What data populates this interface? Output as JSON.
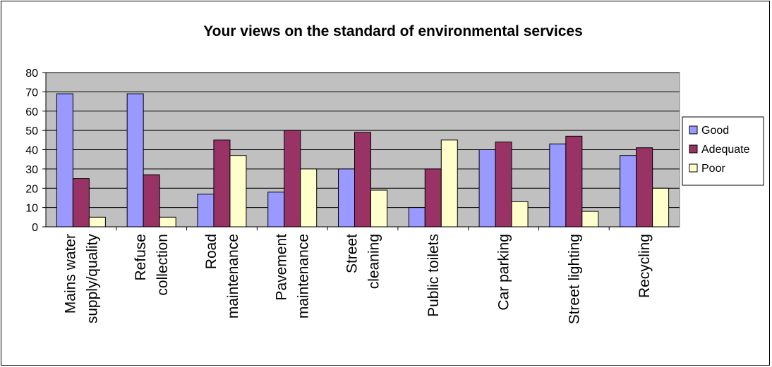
{
  "chart_data": {
    "type": "bar",
    "title": "Your views on the standard of environmental services",
    "xlabel": "",
    "ylabel": "",
    "ylim": [
      0,
      80
    ],
    "yticks": [
      0,
      10,
      20,
      30,
      40,
      50,
      60,
      70,
      80
    ],
    "grid": true,
    "legend_position": "right",
    "categories": [
      [
        "Mains water",
        "supply/quality"
      ],
      [
        "Refuse",
        "collection"
      ],
      [
        "Road",
        "maintenance"
      ],
      [
        "Pavement",
        "maintenance"
      ],
      [
        "Street",
        "cleaning"
      ],
      [
        "Public toilets"
      ],
      [
        "Car parking"
      ],
      [
        "Street lighting"
      ],
      [
        "Recycling"
      ]
    ],
    "series": [
      {
        "name": "Good",
        "color": "#9999ff",
        "values": [
          69,
          69,
          17,
          18,
          30,
          10,
          40,
          43,
          37
        ]
      },
      {
        "name": "Adequate",
        "color": "#993366",
        "values": [
          25,
          27,
          45,
          50,
          49,
          30,
          44,
          47,
          41
        ]
      },
      {
        "name": "Poor",
        "color": "#ffffcc",
        "values": [
          5,
          5,
          37,
          30,
          19,
          45,
          13,
          8,
          20
        ]
      }
    ],
    "plot_background": "#c0c0c0"
  }
}
